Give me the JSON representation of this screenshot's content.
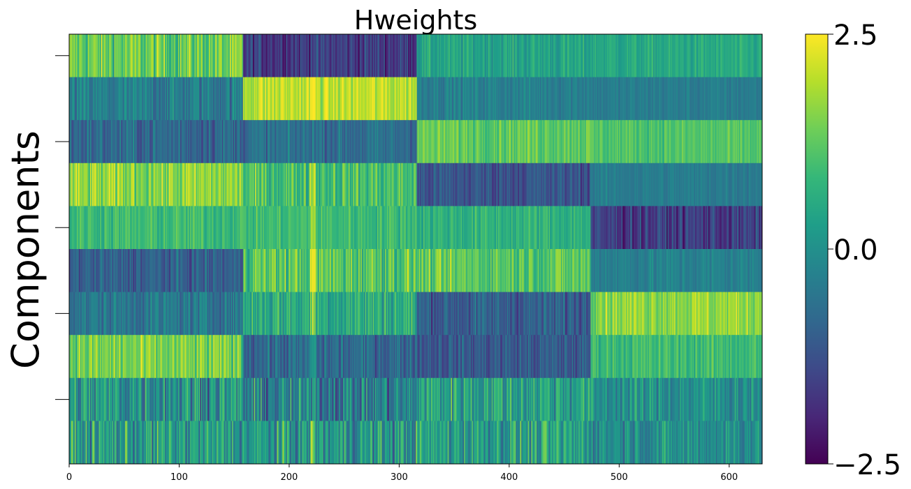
{
  "chart_data": {
    "type": "heatmap",
    "title": "Hweights",
    "ylabel": "Components",
    "xlabel": "",
    "n_rows": 10,
    "n_cols": 630,
    "xlim": [
      0,
      630
    ],
    "xticks": [
      0,
      100,
      200,
      300,
      400,
      500,
      600
    ],
    "yticks_labels": [
      "",
      "",
      "",
      "",
      ""
    ],
    "colormap": "viridis",
    "vmin": -2.5,
    "vmax": 2.5,
    "colorbar_ticks": [
      2.5,
      0.0,
      -2.5
    ],
    "colorbar_tick_labels": [
      "2.5",
      "0.0",
      "−2.5"
    ],
    "block_edges": [
      0,
      158,
      316,
      474,
      630
    ],
    "row_block_means": [
      [
        1.3,
        -1.6,
        0.4,
        0.5
      ],
      [
        -0.4,
        2.0,
        -0.3,
        -0.4
      ],
      [
        -0.8,
        -0.7,
        1.3,
        1.1
      ],
      [
        1.6,
        1.0,
        -1.2,
        -0.4
      ],
      [
        0.9,
        0.9,
        0.7,
        -1.6
      ],
      [
        -1.0,
        1.2,
        1.2,
        -0.3
      ],
      [
        -0.5,
        0.6,
        -1.0,
        1.7
      ],
      [
        1.4,
        -0.8,
        -1.1,
        0.9
      ],
      [
        0.1,
        -0.4,
        0.4,
        0.0
      ],
      [
        0.2,
        0.1,
        0.3,
        0.0
      ]
    ],
    "row_block_noise": [
      [
        0.9,
        0.7,
        0.5,
        0.4
      ],
      [
        0.7,
        0.6,
        0.4,
        0.3
      ],
      [
        0.7,
        0.6,
        0.5,
        0.4
      ],
      [
        0.8,
        0.8,
        0.6,
        0.3
      ],
      [
        0.5,
        0.5,
        0.5,
        0.7
      ],
      [
        0.6,
        0.9,
        0.7,
        0.4
      ],
      [
        0.6,
        0.9,
        0.7,
        0.6
      ],
      [
        0.8,
        0.7,
        0.6,
        0.5
      ],
      [
        1.3,
        1.2,
        1.1,
        0.8
      ],
      [
        1.2,
        1.2,
        1.1,
        0.8
      ]
    ]
  }
}
